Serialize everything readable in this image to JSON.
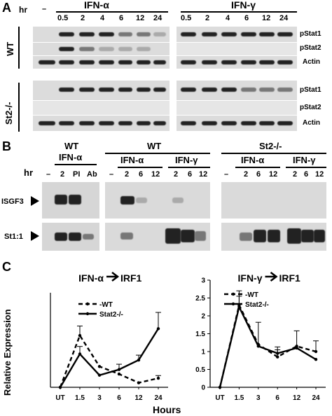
{
  "panel_a": {
    "letter": "A",
    "hr_label": "hr",
    "dash": "–",
    "ifna_header": "IFN-α",
    "ifng_header": "IFN-γ",
    "timepoints": [
      "0.5",
      "2",
      "4",
      "6",
      "12",
      "24"
    ],
    "wt_label": "WT",
    "st2_label": "St2-/-",
    "row_labels": [
      "pStat1",
      "pStat2",
      "Actin"
    ]
  },
  "panel_b": {
    "letter": "B",
    "hr_label": "hr",
    "dash": "–",
    "group1_title1": "WT",
    "group1_title2": "IFN-α",
    "group1_lanes": [
      "2",
      "PI",
      "Ab"
    ],
    "group2_title": "WT",
    "group2_sub_a": "IFN-α",
    "group2_sub_g": "IFN-γ",
    "group2_lanes_a": [
      "2",
      "6",
      "12"
    ],
    "group2_lanes_g": [
      "2",
      "6",
      "12"
    ],
    "group3_title": "St2-/-",
    "group3_sub_a": "IFN-α",
    "group3_sub_g": "IFN-γ",
    "group3_lanes_a": [
      "2",
      "6",
      "12"
    ],
    "group3_lanes_g": [
      "2",
      "6",
      "12"
    ],
    "band_isgf3": "ISGF3",
    "band_st11": "St1:1"
  },
  "panel_c": {
    "letter": "C",
    "xlabel": "Hours",
    "ylabel": "Relative Expression"
  },
  "chart_data": [
    {
      "type": "line",
      "title_left": "IFN-α",
      "title_right": "IRF1",
      "categories": [
        "UT",
        "1.5",
        "3",
        "6",
        "12",
        "24"
      ],
      "ylim": [
        0,
        2.5
      ],
      "yticks": [],
      "series": [
        {
          "name": "WT",
          "style": "dashed",
          "values": [
            0,
            1.37,
            0.55,
            0.35,
            0.12,
            0.24
          ],
          "errors": [
            0,
            0.25,
            0,
            0,
            0,
            0.07
          ]
        },
        {
          "name": "Stat2-/-",
          "style": "solid",
          "values": [
            0,
            0.88,
            0.32,
            0.47,
            0.72,
            1.55
          ],
          "errors": [
            0,
            0.2,
            0,
            0.14,
            0.13,
            0.43
          ]
        }
      ]
    },
    {
      "type": "line",
      "title_left": "IFN-γ",
      "title_right": "IRF1",
      "categories": [
        "UT",
        "1.5",
        "3",
        "6",
        "12",
        "24"
      ],
      "ylim": [
        0,
        3
      ],
      "yticks": [
        "0",
        "0.5",
        "1",
        "1.5",
        "2",
        "2.5",
        "3"
      ],
      "series": [
        {
          "name": "WT",
          "style": "dashed",
          "values": [
            0,
            2.3,
            1.2,
            0.85,
            1.15,
            1.0
          ],
          "errors": [
            0,
            0.4,
            0,
            0.2,
            0.43,
            0.3
          ]
        },
        {
          "name": "Stat2-/-",
          "style": "solid",
          "values": [
            0,
            2.25,
            1.15,
            0.95,
            1.1,
            0.78
          ],
          "errors": [
            0,
            0.3,
            0.67,
            0.18,
            0,
            0
          ]
        }
      ]
    }
  ]
}
